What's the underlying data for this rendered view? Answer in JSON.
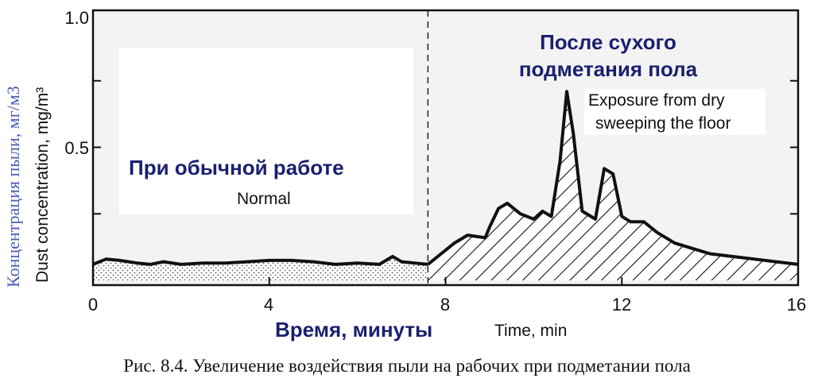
{
  "chart_data": {
    "type": "area",
    "ylim": [
      0,
      1.0
    ],
    "xlim": [
      0,
      16
    ],
    "xticks": [
      "0",
      "4",
      "8",
      "12",
      "16"
    ],
    "yticks": [
      "1.0",
      "0.5"
    ],
    "xlabel": "Time, min",
    "xlabel_ru": "Время, минуты",
    "ylabel": "Dust concentration, mg/m³",
    "ylabel_ru": "Концентрация пыли, мг/м3",
    "divider_x": 7.6,
    "series": [
      {
        "name": "Normal",
        "name_ru": "При обычной работе",
        "fill": "dotted",
        "x": [
          0,
          0.3,
          0.6,
          1.0,
          1.3,
          1.6,
          2.0,
          2.5,
          3.0,
          3.5,
          4.0,
          4.5,
          5.0,
          5.5,
          6.0,
          6.5,
          6.8,
          7.0,
          7.3,
          7.6
        ],
        "y": [
          0.06,
          0.08,
          0.075,
          0.065,
          0.06,
          0.07,
          0.06,
          0.065,
          0.065,
          0.07,
          0.075,
          0.075,
          0.07,
          0.06,
          0.065,
          0.06,
          0.09,
          0.07,
          0.065,
          0.06
        ]
      },
      {
        "name": "Exposure from dry sweeping the floor",
        "name_ru": "После сухого подметания пола",
        "fill": "hatched",
        "x": [
          7.6,
          7.9,
          8.2,
          8.5,
          8.9,
          9.0,
          9.2,
          9.4,
          9.7,
          10.0,
          10.2,
          10.4,
          10.6,
          10.75,
          10.9,
          11.1,
          11.4,
          11.6,
          11.8,
          12.0,
          12.2,
          12.5,
          12.8,
          13.2,
          13.6,
          14.0,
          14.5,
          15.0,
          15.5,
          16.0
        ],
        "y": [
          0.06,
          0.1,
          0.14,
          0.17,
          0.16,
          0.2,
          0.27,
          0.29,
          0.25,
          0.23,
          0.26,
          0.24,
          0.45,
          0.71,
          0.55,
          0.26,
          0.23,
          0.42,
          0.4,
          0.24,
          0.22,
          0.22,
          0.18,
          0.14,
          0.12,
          0.1,
          0.09,
          0.08,
          0.07,
          0.06
        ]
      }
    ]
  },
  "annotations": {
    "normal_en": "Normal",
    "normal_ru": "При обычной работе",
    "after_ru_line1": "После сухого",
    "after_ru_line2": "подметания пола",
    "after_en_line1": "Exposure from dry",
    "after_en_line2": "sweeping the floor"
  },
  "caption": "Рис. 8.4. Увеличение воздействия пыли на рабочих при подметании пола"
}
